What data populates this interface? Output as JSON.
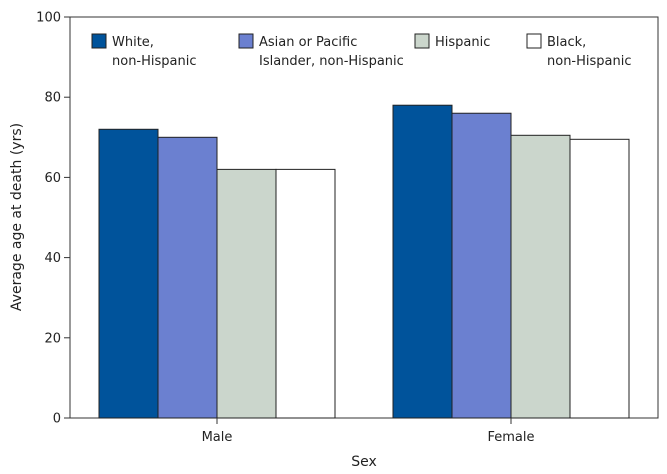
{
  "chart_data": {
    "type": "bar",
    "categories": [
      "Male",
      "Female"
    ],
    "series": [
      {
        "name": "White, non-Hispanic",
        "name_lines": [
          "White,",
          "non-Hispanic"
        ],
        "values": [
          72,
          78
        ],
        "color": "#00539b"
      },
      {
        "name": "Asian or Pacific Islander, non-Hispanic",
        "name_lines": [
          "Asian or Pacific",
          "Islander, non-Hispanic"
        ],
        "values": [
          70,
          76
        ],
        "color": "#6b80d0"
      },
      {
        "name": "Hispanic",
        "name_lines": [
          "Hispanic"
        ],
        "values": [
          62,
          70.5
        ],
        "color": "#cbd6cc"
      },
      {
        "name": "Black, non-Hispanic",
        "name_lines": [
          "Black,",
          "non-Hispanic"
        ],
        "values": [
          62,
          69.5
        ],
        "color": "#ffffff"
      }
    ],
    "title": "",
    "xlabel": "Sex",
    "ylabel": "Average age at death (yrs)",
    "ylim": [
      0,
      100
    ],
    "yticks": [
      0,
      20,
      40,
      60,
      80,
      100
    ],
    "grid": false,
    "legend_position": "top"
  }
}
